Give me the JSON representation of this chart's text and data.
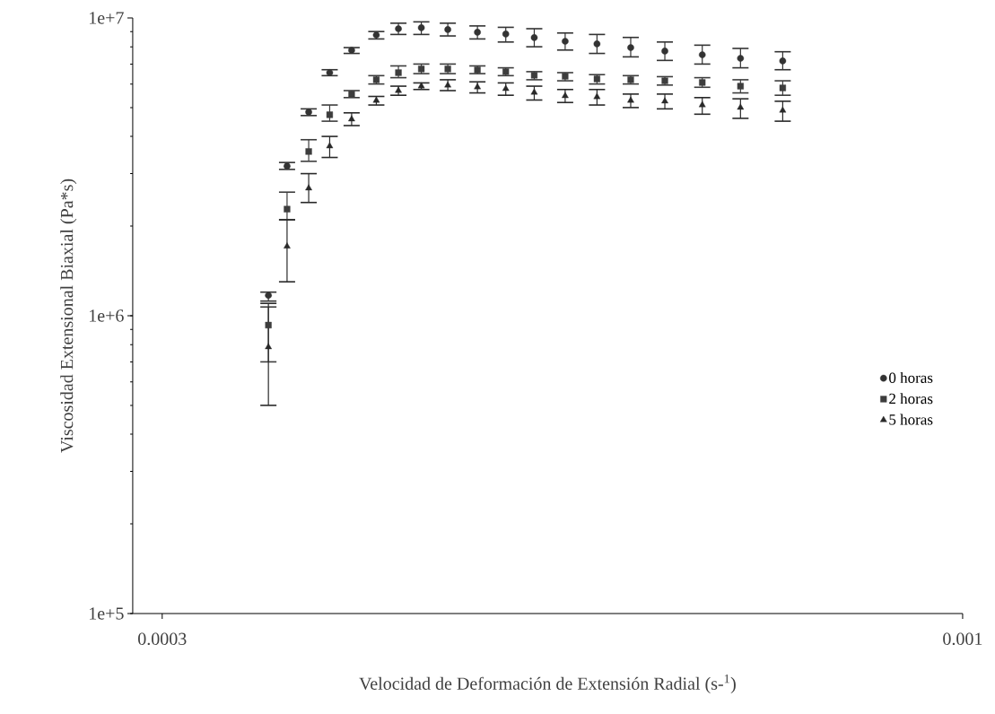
{
  "chart_data": {
    "type": "scatter",
    "xlabel": "Velocidad de Deformación de Extensión Radial (s-$^{1}$)",
    "ylabel": "Viscosidad Extensional Biaxial (Pa*s)",
    "x": [
      0.000352,
      0.000362,
      0.000374,
      0.000386,
      0.000399,
      0.000414,
      0.000428,
      0.000443,
      0.000461,
      0.000482,
      0.000503,
      0.000525,
      0.00055,
      0.000577,
      0.000607,
      0.000639,
      0.000676,
      0.000716,
      0.000763
    ],
    "log": "xy",
    "xlim": [
      0.000287,
      0.001
    ],
    "xticks": [
      0.0003,
      0.001
    ],
    "ylim": [
      100000,
      10000000
    ],
    "yticks": [
      {
        "value": 100000,
        "label": "1e+5"
      },
      {
        "value": 1000000,
        "label": "1e+6"
      },
      {
        "value": 10000000,
        "label": "1e+7"
      }
    ],
    "legend": "right",
    "grid": false,
    "series": [
      {
        "name": "0 horas",
        "color": "#333333",
        "marker": "circle",
        "values": [
          1170000,
          3180000,
          4830000,
          6550000,
          7790000,
          8760000,
          9200000,
          9270000,
          9140000,
          8950000,
          8830000,
          8590000,
          8350000,
          8180000,
          7950000,
          7740000,
          7520000,
          7320000,
          7170000
        ],
        "errors": [
          [
            1120000,
            1200000
          ],
          [
            3100000,
            3270000
          ],
          [
            4700000,
            4950000
          ],
          [
            6400000,
            6700000
          ],
          [
            7600000,
            7950000
          ],
          [
            8500000,
            9000000
          ],
          [
            8800000,
            9600000
          ],
          [
            8800000,
            9700000
          ],
          [
            8700000,
            9600000
          ],
          [
            8500000,
            9400000
          ],
          [
            8300000,
            9300000
          ],
          [
            8000000,
            9200000
          ],
          [
            7800000,
            8900000
          ],
          [
            7600000,
            8800000
          ],
          [
            7400000,
            8600000
          ],
          [
            7200000,
            8300000
          ],
          [
            7000000,
            8100000
          ],
          [
            6800000,
            7900000
          ],
          [
            6700000,
            7700000
          ]
        ]
      },
      {
        "name": "2 horas",
        "color": "#3d3d3d",
        "marker": "square",
        "values": [
          930000,
          2280000,
          3560000,
          4730000,
          5550000,
          6200000,
          6550000,
          6740000,
          6740000,
          6690000,
          6600000,
          6420000,
          6370000,
          6240000,
          6200000,
          6150000,
          6070000,
          5900000,
          5820000
        ],
        "errors": [
          [
            700000,
            1070000
          ],
          [
            2100000,
            2600000
          ],
          [
            3300000,
            3900000
          ],
          [
            4500000,
            5100000
          ],
          [
            5400000,
            5700000
          ],
          [
            6000000,
            6400000
          ],
          [
            6300000,
            6900000
          ],
          [
            6500000,
            7000000
          ],
          [
            6500000,
            7000000
          ],
          [
            6500000,
            6900000
          ],
          [
            6400000,
            6800000
          ],
          [
            6200000,
            6600000
          ],
          [
            6150000,
            6550000
          ],
          [
            6000000,
            6450000
          ],
          [
            6000000,
            6400000
          ],
          [
            5950000,
            6350000
          ],
          [
            5850000,
            6300000
          ],
          [
            5600000,
            6200000
          ],
          [
            5500000,
            6150000
          ]
        ]
      },
      {
        "name": "5 horas",
        "color": "#292929",
        "marker": "triangle",
        "values": [
          785000,
          1710000,
          2680000,
          3710000,
          4570000,
          5280000,
          5700000,
          5900000,
          5940000,
          5860000,
          5780000,
          5620000,
          5470000,
          5430000,
          5280000,
          5250000,
          5100000,
          5000000,
          4890000
        ],
        "errors": [
          [
            500000,
            1100000
          ],
          [
            1300000,
            2100000
          ],
          [
            2400000,
            3000000
          ],
          [
            3400000,
            4000000
          ],
          [
            4350000,
            4800000
          ],
          [
            5100000,
            5450000
          ],
          [
            5500000,
            5900000
          ],
          [
            5750000,
            6050000
          ],
          [
            5700000,
            6200000
          ],
          [
            5600000,
            6100000
          ],
          [
            5500000,
            6050000
          ],
          [
            5300000,
            5900000
          ],
          [
            5200000,
            5750000
          ],
          [
            5100000,
            5750000
          ],
          [
            5000000,
            5550000
          ],
          [
            4950000,
            5550000
          ],
          [
            4750000,
            5400000
          ],
          [
            4600000,
            5350000
          ],
          [
            4500000,
            5250000
          ]
        ]
      }
    ]
  }
}
